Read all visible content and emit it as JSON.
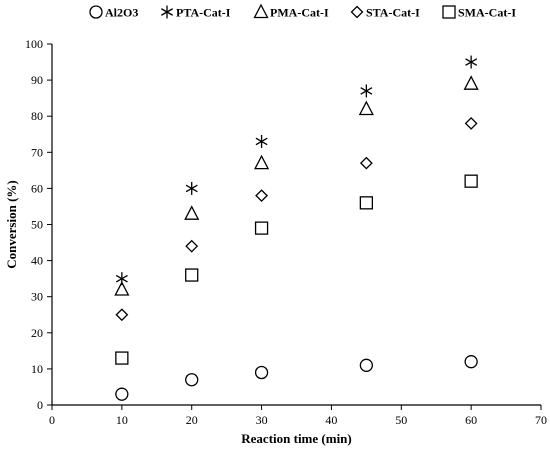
{
  "chart_data": {
    "type": "scatter",
    "title": "",
    "xlabel": "Reaction time (min)",
    "ylabel": "Conversion (%)",
    "xlim": [
      0,
      70
    ],
    "ylim": [
      0,
      100
    ],
    "xticks": [
      "0",
      "10",
      "20",
      "30",
      "40",
      "50",
      "60",
      "70"
    ],
    "yticks": [
      "0",
      "10",
      "20",
      "30",
      "40",
      "50",
      "60",
      "70",
      "80",
      "90",
      "100"
    ],
    "grid": false,
    "legend_position": "top",
    "x": [
      10,
      20,
      30,
      45,
      60
    ],
    "series": [
      {
        "name": "Al2O3",
        "marker": "circle",
        "color": "#000000",
        "values": [
          3,
          7,
          9,
          11,
          12
        ]
      },
      {
        "name": "PTA-Cat-I",
        "marker": "asterisk",
        "color": "#000000",
        "values": [
          35,
          60,
          73,
          87,
          95
        ]
      },
      {
        "name": "PMA-Cat-I",
        "marker": "triangle",
        "color": "#000000",
        "values": [
          32,
          53,
          67,
          82,
          89
        ]
      },
      {
        "name": "STA-Cat-I",
        "marker": "diamond",
        "color": "#000000",
        "values": [
          25,
          44,
          58,
          67,
          78
        ]
      },
      {
        "name": "SMA-Cat-I",
        "marker": "square",
        "color": "#000000",
        "values": [
          13,
          36,
          49,
          56,
          62
        ]
      }
    ]
  }
}
